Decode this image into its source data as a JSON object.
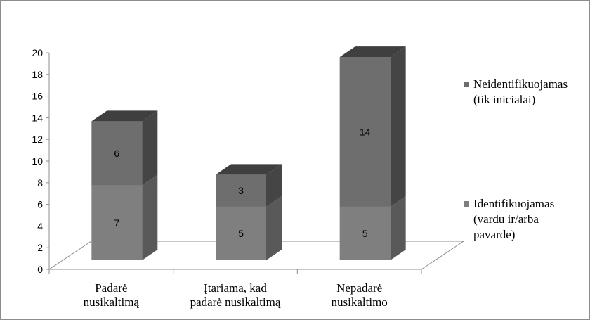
{
  "colors": {
    "identifikuojamas_front": "#7f7f7f",
    "identifikuojamas_side": "#595959",
    "identifikuojamas_top": "#9a9a9a",
    "neidentifikuojamas_front": "#6e6e6e",
    "neidentifikuojamas_side": "#454545",
    "neidentifikuojamas_top": "#3f3f3f",
    "axis": "#8c8c8c"
  },
  "chart_data": {
    "type": "bar",
    "stacked": true,
    "three_d": true,
    "categories": [
      [
        "Padarė",
        "nusikaltimą"
      ],
      [
        "Įtariama, kad",
        "padarė nusikaltimą"
      ],
      [
        "Nepadarė",
        "nusikaltimo"
      ]
    ],
    "series": [
      {
        "name": "Identifikuojamas (vardu ir/arba pavarde)",
        "legend_lines": [
          "Identifikuojamas",
          "(vardu ir/arba",
          "pavarde)"
        ],
        "values": [
          7,
          5,
          5
        ],
        "color_key": "identifikuojamas"
      },
      {
        "name": "Neidentifikuojamas (tik inicialai)",
        "legend_lines": [
          "Neidentifikuojamas",
          "(tik inicialai)"
        ],
        "values": [
          6,
          3,
          14
        ],
        "color_key": "neidentifikuojamas"
      }
    ],
    "ylim": [
      0,
      20
    ],
    "yticks": [
      "0",
      "2",
      "4",
      "6",
      "8",
      "10",
      "12",
      "14",
      "16",
      "18",
      "20"
    ],
    "grid": false,
    "legend": "right",
    "title": "",
    "xlabel": "",
    "ylabel": ""
  }
}
